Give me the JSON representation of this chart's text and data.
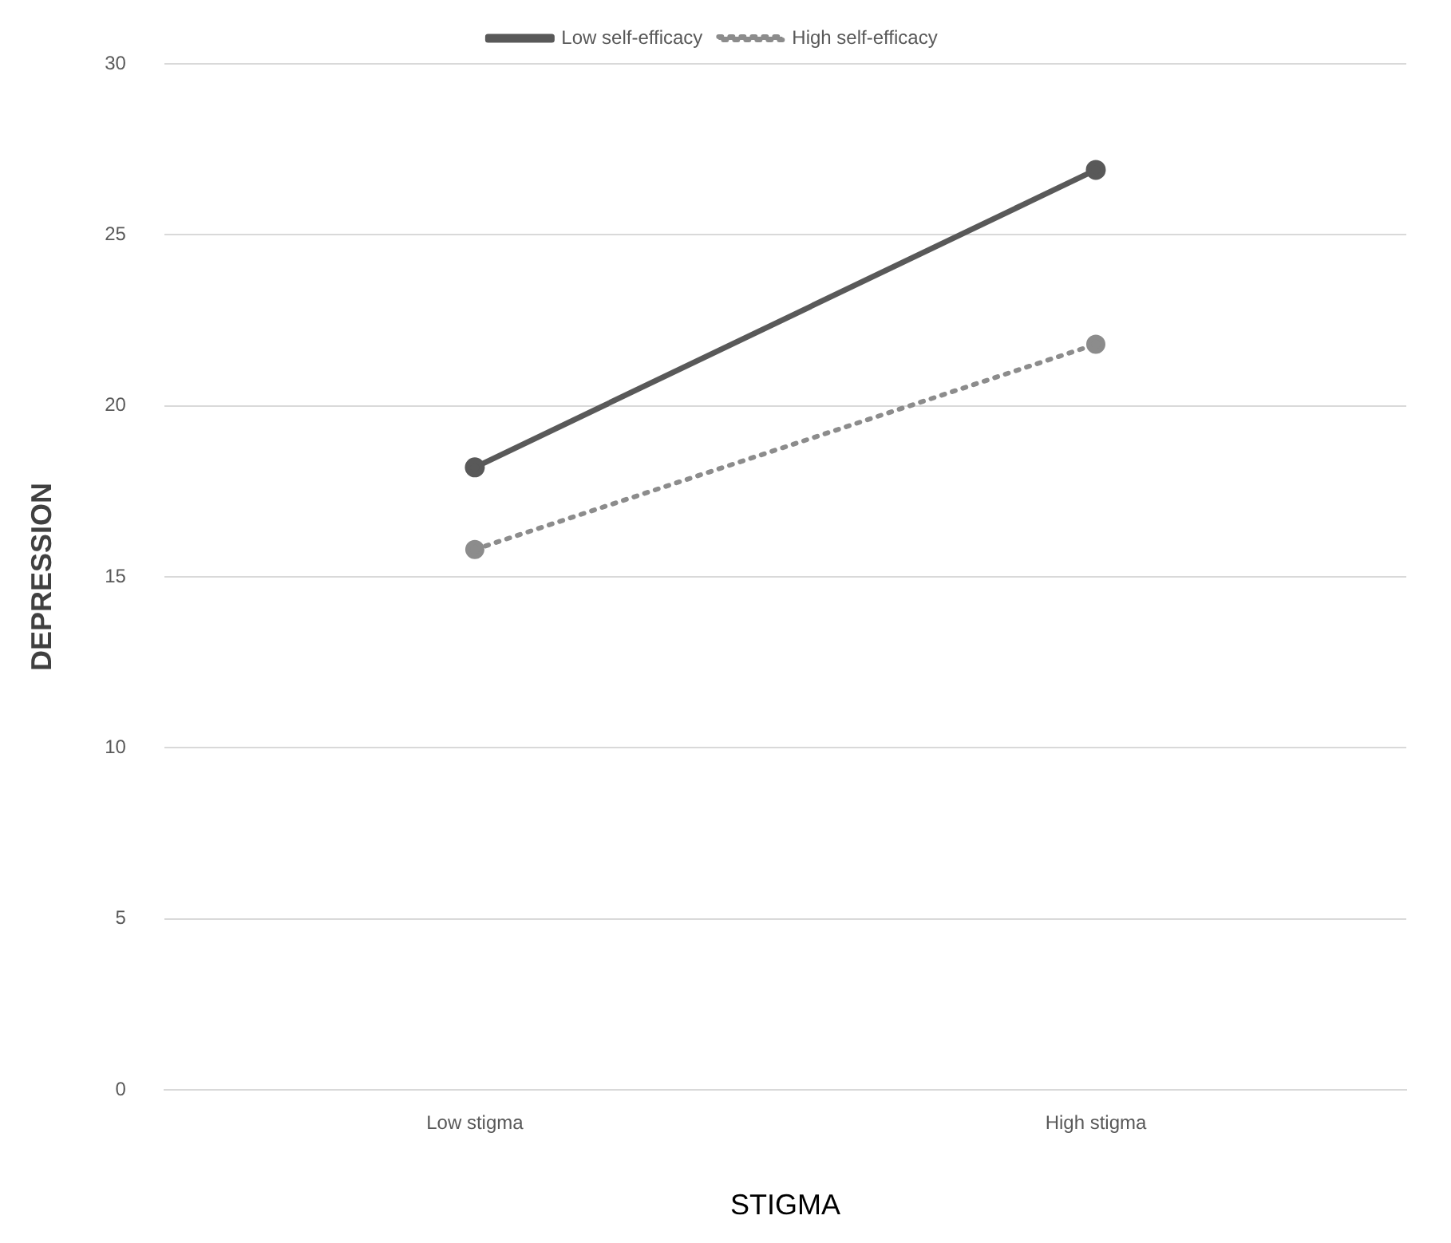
{
  "chart_data": {
    "type": "line",
    "xlabel": "STIGMA",
    "ylabel": "DEPRESSION",
    "categories": [
      "Low stigma",
      "High stigma"
    ],
    "series": [
      {
        "name": "Low self-efficacy",
        "color": "#595959",
        "values": [
          18.2,
          26.9
        ],
        "line_style": "solid"
      },
      {
        "name": "High self-efficacy",
        "color": "#8c8c8c",
        "values": [
          15.8,
          21.8
        ],
        "line_style": "dotted"
      }
    ],
    "ylim": [
      0,
      30
    ],
    "yticks": [
      0,
      5,
      10,
      15,
      20,
      25,
      30
    ],
    "grid": "y",
    "legend": "top",
    "marker": "circle"
  }
}
